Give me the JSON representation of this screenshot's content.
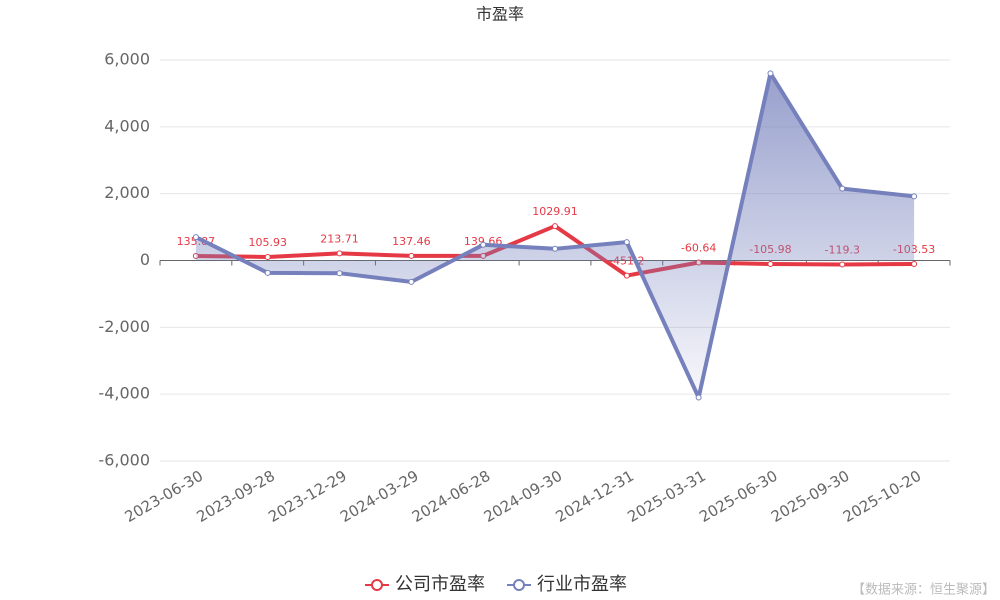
{
  "chart_data": {
    "type": "line",
    "title": "市盈率",
    "categories": [
      "2023-06-30",
      "2023-09-28",
      "2023-12-29",
      "2024-03-29",
      "2024-06-28",
      "2024-09-30",
      "2024-12-31",
      "2025-03-31",
      "2025-06-30",
      "2025-09-30",
      "2025-10-20"
    ],
    "series": [
      {
        "name": "公司市盈率",
        "color": "#e63946",
        "values": [
          135.87,
          105.93,
          213.71,
          137.46,
          139.66,
          1029.91,
          -451.2,
          -60.64,
          -105.98,
          -119.3,
          -103.53
        ],
        "labels": true
      },
      {
        "name": "行业市盈率",
        "color": "#7580bc",
        "values": [
          700,
          -370,
          -380,
          -640,
          470,
          350,
          550,
          -4100,
          5600,
          2150,
          1920
        ],
        "area": true
      }
    ],
    "ylim": [
      -6000,
      6000
    ],
    "yticks": [
      {
        "value": -6000,
        "label": "-6,000"
      },
      {
        "value": -4000,
        "label": "-4,000"
      },
      {
        "value": -2000,
        "label": "-2,000"
      },
      0,
      {
        "value": 2000,
        "label": "2,000"
      },
      {
        "value": 4000,
        "label": "4,000"
      },
      {
        "value": 6000,
        "label": "6,000"
      }
    ],
    "grid": true,
    "source": "【数据来源：恒生聚源】"
  }
}
